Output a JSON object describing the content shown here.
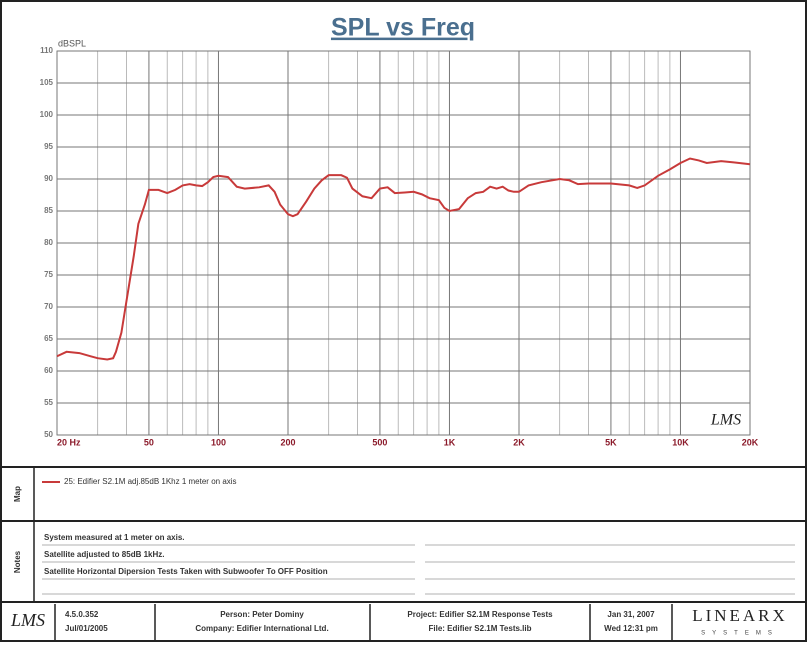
{
  "chart_data": {
    "type": "line",
    "title": "SPL vs Freq",
    "ylabel": "dBSPL",
    "watermark": "LMS",
    "xscale": "log",
    "grid": true,
    "xlim": [
      20,
      20000
    ],
    "ylim": [
      50,
      110
    ],
    "xticks": [
      {
        "value": 20,
        "label": "20 Hz"
      },
      50,
      100,
      200,
      500,
      {
        "value": 1000,
        "label": "1K"
      },
      {
        "value": 2000,
        "label": "2K"
      },
      {
        "value": 5000,
        "label": "5K"
      },
      {
        "value": 10000,
        "label": "10K"
      },
      {
        "value": 20000,
        "label": "20K"
      }
    ],
    "xminorticks": [
      30,
      40,
      60,
      70,
      80,
      90,
      300,
      400,
      600,
      700,
      800,
      900,
      3000,
      4000,
      6000,
      7000,
      8000,
      9000
    ],
    "yticks": [
      50,
      55,
      60,
      65,
      70,
      75,
      80,
      85,
      90,
      95,
      100,
      105,
      110
    ],
    "x": [
      20,
      22,
      25,
      28,
      30,
      33,
      35,
      36,
      38,
      40,
      43,
      45,
      48,
      50,
      55,
      60,
      65,
      70,
      75,
      80,
      85,
      90,
      95,
      100,
      110,
      120,
      130,
      150,
      165,
      175,
      185,
      200,
      210,
      220,
      240,
      260,
      280,
      300,
      340,
      360,
      380,
      420,
      460,
      500,
      540,
      580,
      640,
      700,
      760,
      820,
      900,
      950,
      1000,
      1100,
      1200,
      1300,
      1400,
      1500,
      1600,
      1700,
      1800,
      1900,
      2000,
      2200,
      2500,
      3000,
      3300,
      3600,
      4000,
      5000,
      6000,
      6500,
      7000,
      8000,
      9000,
      10000,
      11000,
      12000,
      13000,
      15000,
      17000,
      20000
    ],
    "series": [
      {
        "name": "25: Edifier S2.1M adj.85dB 1Khz 1 meter on axis",
        "color": "#c83a3a",
        "values": [
          62.3,
          63,
          62.8,
          62.3,
          62,
          61.8,
          62,
          63,
          66,
          71,
          78,
          83,
          86,
          88.3,
          88.3,
          87.8,
          88.3,
          89,
          89.2,
          89,
          88.9,
          89.5,
          90.3,
          90.5,
          90.3,
          88.8,
          88.5,
          88.7,
          89,
          88,
          86,
          84.5,
          84.2,
          84.5,
          86.5,
          88.5,
          89.8,
          90.6,
          90.6,
          90.2,
          88.5,
          87.3,
          87,
          88.5,
          88.7,
          87.8,
          87.9,
          88,
          87.6,
          87,
          86.7,
          85.5,
          85,
          85.3,
          87,
          87.8,
          88,
          88.8,
          88.5,
          88.8,
          88.2,
          88,
          88,
          89,
          89.5,
          90,
          89.8,
          89.2,
          89.3,
          89.3,
          89,
          88.6,
          89,
          90.5,
          91.5,
          92.5,
          93.2,
          92.9,
          92.5,
          92.8,
          92.6,
          92.3
        ]
      }
    ]
  },
  "map": {
    "label": "Map"
  },
  "notes": {
    "label": "Notes",
    "lines": [
      "System measured at 1 meter on axis.",
      "Satellite adjusted to 85dB 1kHz.",
      "Satellite Horizontal Dipersion Tests Taken with Subwoofer To OFF Position"
    ]
  },
  "footer": {
    "logo": "LMS",
    "version": "4.5.0.352",
    "version_date": "Jul/01/2005",
    "person": "Person: Peter Dominy",
    "company": "Company: Edifier International Ltd.",
    "project": "Project: Edifier S2.1M Response Tests",
    "file": "File: Edifier S2.1M Tests.lib",
    "date": "Jan 31, 2007",
    "time": "Wed 12:31 pm",
    "brand": "LINEARX",
    "brand_sub": "SYSTEMS"
  }
}
